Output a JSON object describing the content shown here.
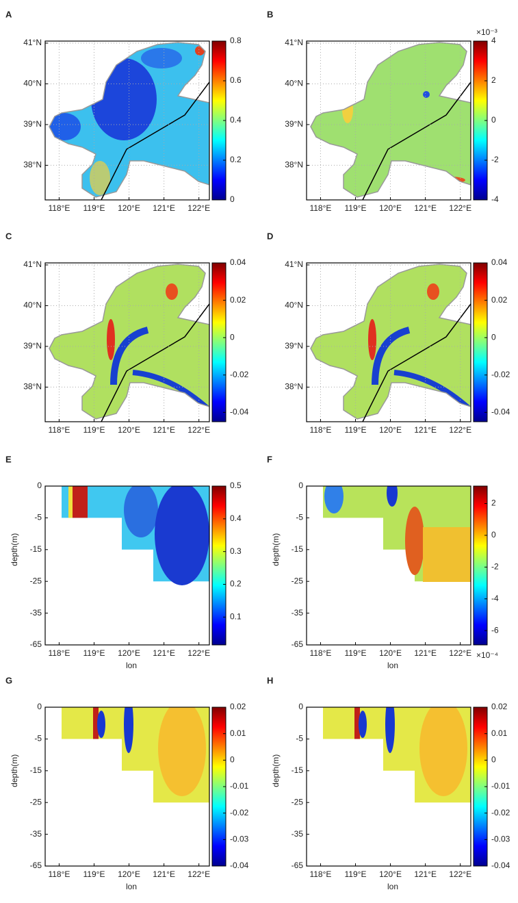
{
  "chart_data": [
    {
      "type": "map",
      "label": "A",
      "xlim": [
        117.6,
        122.3
      ],
      "ylim": [
        37.15,
        41.05
      ],
      "xticks": [
        {
          "value": 118,
          "label": "118°E"
        },
        {
          "value": 119,
          "label": "119°E"
        },
        {
          "value": 120,
          "label": "120°E"
        },
        {
          "value": 121,
          "label": "121°E"
        },
        {
          "value": 122,
          "label": "122°E"
        }
      ],
      "yticks": [
        {
          "value": 38,
          "label": "38°N"
        },
        {
          "value": 39,
          "label": "39°N"
        },
        {
          "value": 40,
          "label": "40°N"
        },
        {
          "value": 41,
          "label": "41°N"
        }
      ],
      "grid": true,
      "colorbar": {
        "clim": [
          0,
          0.8
        ],
        "ticks": [
          0,
          0.2,
          0.4,
          0.6,
          0.8
        ]
      }
    },
    {
      "type": "map",
      "label": "B",
      "xlim": [
        117.6,
        122.3
      ],
      "ylim": [
        37.15,
        41.05
      ],
      "xticks": [
        {
          "value": 118,
          "label": "118°E"
        },
        {
          "value": 119,
          "label": "119°E"
        },
        {
          "value": 120,
          "label": "120°E"
        },
        {
          "value": 121,
          "label": "121°E"
        },
        {
          "value": 122,
          "label": "122°E"
        }
      ],
      "yticks": [
        {
          "value": 38,
          "label": "38°N"
        },
        {
          "value": 39,
          "label": "39°N"
        },
        {
          "value": 40,
          "label": "40°N"
        },
        {
          "value": 41,
          "label": "41°N"
        }
      ],
      "grid": true,
      "colorbar": {
        "clim": [
          -4,
          4
        ],
        "ticks": [
          -4,
          -2,
          0,
          2,
          4
        ],
        "exponent": "×10⁻³"
      }
    },
    {
      "type": "map",
      "label": "C",
      "xlim": [
        117.6,
        122.3
      ],
      "ylim": [
        37.15,
        41.05
      ],
      "xticks": [
        {
          "value": 118,
          "label": "118°E"
        },
        {
          "value": 119,
          "label": "119°E"
        },
        {
          "value": 120,
          "label": "120°E"
        },
        {
          "value": 121,
          "label": "121°E"
        },
        {
          "value": 122,
          "label": "122°E"
        }
      ],
      "yticks": [
        {
          "value": 38,
          "label": "38°N"
        },
        {
          "value": 39,
          "label": "39°N"
        },
        {
          "value": 40,
          "label": "40°N"
        },
        {
          "value": 41,
          "label": "41°N"
        }
      ],
      "grid": true,
      "colorbar": {
        "clim": [
          -0.045,
          0.04
        ],
        "ticks": [
          -0.04,
          -0.02,
          0,
          0.02,
          0.04
        ]
      }
    },
    {
      "type": "map",
      "label": "D",
      "xlim": [
        117.6,
        122.3
      ],
      "ylim": [
        37.15,
        41.05
      ],
      "xticks": [
        {
          "value": 118,
          "label": "118°E"
        },
        {
          "value": 119,
          "label": "119°E"
        },
        {
          "value": 120,
          "label": "120°E"
        },
        {
          "value": 121,
          "label": "121°E"
        },
        {
          "value": 122,
          "label": "122°E"
        }
      ],
      "yticks": [
        {
          "value": 38,
          "label": "38°N"
        },
        {
          "value": 39,
          "label": "39°N"
        },
        {
          "value": 40,
          "label": "40°N"
        },
        {
          "value": 41,
          "label": "41°N"
        }
      ],
      "grid": true,
      "colorbar": {
        "clim": [
          -0.045,
          0.04
        ],
        "ticks": [
          -0.04,
          -0.02,
          0,
          0.02,
          0.04
        ]
      }
    },
    {
      "type": "section",
      "label": "E",
      "xlabel": "lon",
      "ylabel": "depth(m)",
      "xlim": [
        117.6,
        122.3
      ],
      "ylim": [
        -65,
        0
      ],
      "xticks": [
        {
          "value": 118,
          "label": "118°E"
        },
        {
          "value": 119,
          "label": "119°E"
        },
        {
          "value": 120,
          "label": "120°E"
        },
        {
          "value": 121,
          "label": "121°E"
        },
        {
          "value": 122,
          "label": "122°E"
        }
      ],
      "yticks": [
        0,
        -5,
        -15,
        -25,
        -35,
        -65
      ],
      "colorbar": {
        "clim": [
          0.015,
          0.5
        ],
        "ticks": [
          0.1,
          0.2,
          0.3,
          0.4,
          0.5
        ]
      }
    },
    {
      "type": "section",
      "label": "F",
      "xlabel": "lon",
      "ylabel": "depth(m)",
      "xlim": [
        117.6,
        122.3
      ],
      "ylim": [
        -65,
        0
      ],
      "xticks": [
        {
          "value": 118,
          "label": "118°E"
        },
        {
          "value": 119,
          "label": "119°E"
        },
        {
          "value": 120,
          "label": "120°E"
        },
        {
          "value": 121,
          "label": "121°E"
        },
        {
          "value": 122,
          "label": "122°E"
        }
      ],
      "yticks": [
        0,
        -5,
        -15,
        -25,
        -35,
        -65
      ],
      "colorbar": {
        "clim": [
          -6.9,
          3.1
        ],
        "ticks": [
          -6,
          -4,
          -2,
          0,
          2
        ],
        "exponent": "×10⁻⁴"
      }
    },
    {
      "type": "section",
      "label": "G",
      "xlabel": "lon",
      "ylabel": "depth(m)",
      "xlim": [
        117.6,
        122.3
      ],
      "ylim": [
        -65,
        0
      ],
      "xticks": [
        {
          "value": 118,
          "label": "118°E"
        },
        {
          "value": 119,
          "label": "119°E"
        },
        {
          "value": 120,
          "label": "120°E"
        },
        {
          "value": 121,
          "label": "121°E"
        },
        {
          "value": 122,
          "label": "122°E"
        }
      ],
      "yticks": [
        0,
        -5,
        -15,
        -25,
        -35,
        -65
      ],
      "colorbar": {
        "clim": [
          -0.04,
          0.02
        ],
        "ticks": [
          -0.04,
          -0.03,
          -0.02,
          -0.01,
          0,
          0.01,
          0.02
        ]
      }
    },
    {
      "type": "section",
      "label": "H",
      "xlabel": "lon",
      "ylabel": "depth(m)",
      "xlim": [
        117.6,
        122.3
      ],
      "ylim": [
        -65,
        0
      ],
      "xticks": [
        {
          "value": 118,
          "label": "118°E"
        },
        {
          "value": 119,
          "label": "119°E"
        },
        {
          "value": 120,
          "label": "120°E"
        },
        {
          "value": 121,
          "label": "121°E"
        },
        {
          "value": 122,
          "label": "122°E"
        }
      ],
      "yticks": [
        0,
        -5,
        -15,
        -25,
        -35,
        -65
      ],
      "colorbar": {
        "clim": [
          -0.04,
          0.02
        ],
        "ticks": [
          -0.04,
          -0.03,
          -0.02,
          -0.01,
          0,
          0.01,
          0.02
        ]
      }
    }
  ]
}
